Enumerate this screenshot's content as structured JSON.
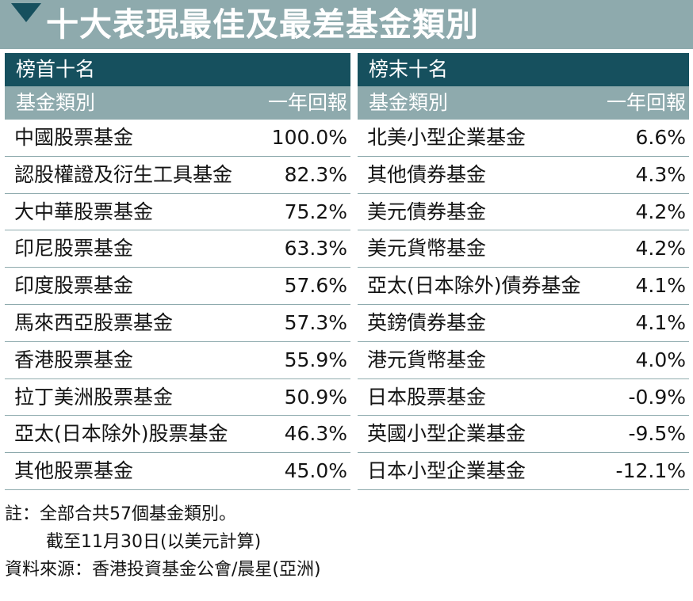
{
  "title": "十大表現最佳及最差基金類別",
  "top": {
    "section_label": "榜首十名",
    "col_name": "基金類別",
    "col_return": "一年回報",
    "rows": [
      {
        "name": "中國股票基金",
        "return": "100.0%"
      },
      {
        "name": "認股權證及衍生工具基金",
        "return": "82.3%"
      },
      {
        "name": "大中華股票基金",
        "return": "75.2%"
      },
      {
        "name": "印尼股票基金",
        "return": "63.3%"
      },
      {
        "name": "印度股票基金",
        "return": "57.6%"
      },
      {
        "name": "馬來西亞股票基金",
        "return": "57.3%"
      },
      {
        "name": "香港股票基金",
        "return": "55.9%"
      },
      {
        "name": "拉丁美洲股票基金",
        "return": "50.9%"
      },
      {
        "name": "亞太(日本除外)股票基金",
        "return": "46.3%"
      },
      {
        "name": "其他股票基金",
        "return": "45.0%"
      }
    ]
  },
  "bottom": {
    "section_label": "榜末十名",
    "col_name": "基金類別",
    "col_return": "一年回報",
    "rows": [
      {
        "name": "北美小型企業基金",
        "return": "6.6%"
      },
      {
        "name": "其他債券基金",
        "return": "4.3%"
      },
      {
        "name": "美元債券基金",
        "return": "4.2%"
      },
      {
        "name": "美元貨幣基金",
        "return": "4.2%"
      },
      {
        "name": "亞太(日本除外)債券基金",
        "return": "4.1%"
      },
      {
        "name": "英鎊債券基金",
        "return": "4.1%"
      },
      {
        "name": "港元貨幣基金",
        "return": "4.0%"
      },
      {
        "name": "日本股票基金",
        "return": "-0.9%"
      },
      {
        "name": "英國小型企業基金",
        "return": "-9.5%"
      },
      {
        "name": "日本小型企業基金",
        "return": "-12.1%"
      }
    ]
  },
  "notes": {
    "line1": "註：全部合共57個基金類別。",
    "line2": "截至11月30日(以美元計算)",
    "source": "資料來源：香港投資基金公會/晨星(亞洲)"
  },
  "colors": {
    "dark_teal": "#16505e",
    "light_teal": "#8eaaad"
  }
}
